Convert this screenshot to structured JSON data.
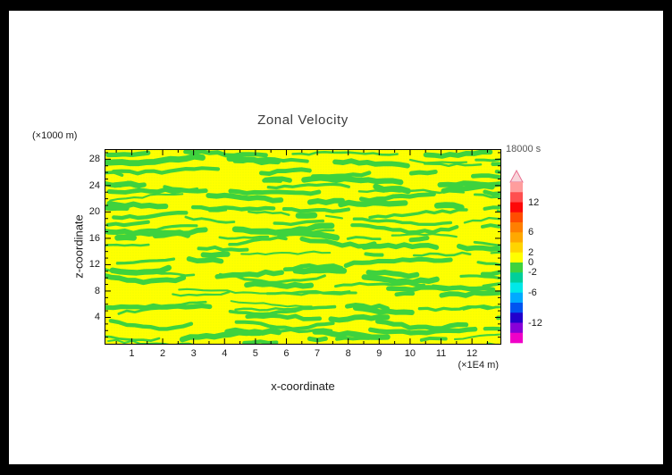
{
  "window": {
    "frame_color": "#000000",
    "canvas_color": "#ffffff"
  },
  "title": "Zonal Velocity",
  "time_label": "18000 s",
  "axes": {
    "x": {
      "label": "x-coordinate",
      "unit_label": "(×1E4 m)",
      "min": 0.15,
      "max": 12.92,
      "ticks": [
        1,
        2,
        3,
        4,
        5,
        6,
        7,
        8,
        9,
        10,
        11,
        12
      ],
      "minor_step": 0.5
    },
    "y": {
      "label": "z-coordinate",
      "unit_label": "(×1000 m)",
      "min": 0,
      "max": 29.4,
      "ticks": [
        4,
        8,
        12,
        16,
        20,
        24,
        28
      ],
      "minor_step": 1
    }
  },
  "colorbar": {
    "min": -16,
    "max": 16,
    "step": 2,
    "arrow_fill": "#f8d4da",
    "arrow_stroke": "#e87090",
    "segment_colors_top_to_bottom": [
      "#ff9d9d",
      "#ff4f4f",
      "#fd0808",
      "#ff4d00",
      "#ff7f00",
      "#ffa800",
      "#ffd400",
      "#ffff00",
      "#3ed23e",
      "#00cf9a",
      "#00e8e8",
      "#00aaff",
      "#0055f0",
      "#2200cc",
      "#8800d8",
      "#f000c8"
    ],
    "labels": [
      {
        "value": 12,
        "text": "12"
      },
      {
        "value": 6,
        "text": "6"
      },
      {
        "value": 2,
        "text": "2"
      },
      {
        "value": 0,
        "text": "0"
      },
      {
        "value": -2,
        "text": "-2"
      },
      {
        "value": -6,
        "text": "-6"
      },
      {
        "value": -12,
        "text": "-12"
      }
    ]
  },
  "chart_data": {
    "type": "heatmap",
    "title": "Zonal Velocity",
    "xlabel": "x-coordinate (×1E4 m)",
    "ylabel": "z-coordinate (×1000 m)",
    "xlim": [
      0.15,
      12.92
    ],
    "ylim": [
      0,
      29.4
    ],
    "time": "18000 s",
    "grid": false,
    "legend_position": "right-colorbar",
    "colorbar_levels": [
      -16,
      -14,
      -12,
      -10,
      -8,
      -6,
      -4,
      -2,
      0,
      2,
      4,
      6,
      8,
      10,
      12,
      14,
      16
    ],
    "value_range_visible": [
      -2,
      2
    ],
    "colors": {
      "positive": "#ffff00",
      "negative": "#3ed23e"
    },
    "description": "Turbulent zonal velocity field at t = 18000 s. Entire field lies between the -2 and 2 contour levels: yellow fill = values 0..2, irregular wavy horizontal green bands = values -2..0, distributed over the full domain with quasi-horizontal streaky structure.",
    "pattern": {
      "seed": 1337,
      "rows": 34,
      "draw_probability": 0.82
    }
  }
}
